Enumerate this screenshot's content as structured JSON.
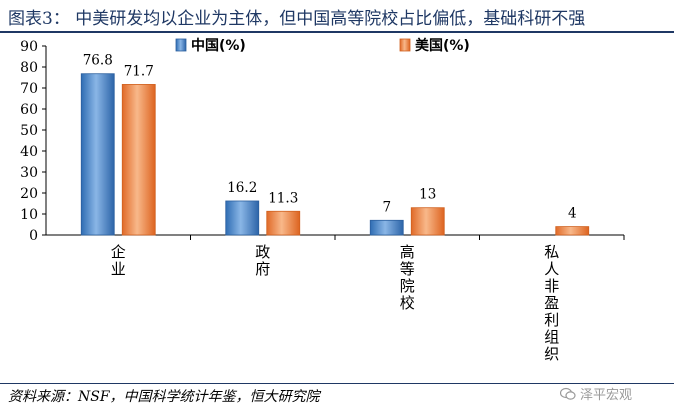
{
  "header": {
    "title": "图表3：  中美研发均以企业为主体，但中国高等院校占比偏低，基础科研不强"
  },
  "footer": {
    "source": "资料来源：NSF，中国科学统计年鉴，恒大研究院"
  },
  "watermark": {
    "text": "泽平宏观",
    "icon": "wechat-icon"
  },
  "colors": {
    "china": "#4a86c8",
    "usa": "#f0884a",
    "axis": "#000000"
  },
  "chart_data": {
    "type": "bar",
    "categories": [
      "企业",
      "政府",
      "高等院校",
      "私人非盈利组织"
    ],
    "series": [
      {
        "name": "中国(%)",
        "values": [
          76.8,
          16.2,
          7,
          null
        ],
        "labels": [
          "76.8",
          "16.2",
          "7",
          ""
        ]
      },
      {
        "name": "美国(%)",
        "values": [
          71.7,
          11.3,
          13,
          4
        ],
        "labels": [
          "71.7",
          "11.3",
          "13",
          "4"
        ]
      }
    ],
    "ylim": [
      0,
      90
    ],
    "yticks": [
      0,
      10,
      20,
      30,
      40,
      50,
      60,
      70,
      80,
      90
    ],
    "legend": "top",
    "grid": false
  }
}
